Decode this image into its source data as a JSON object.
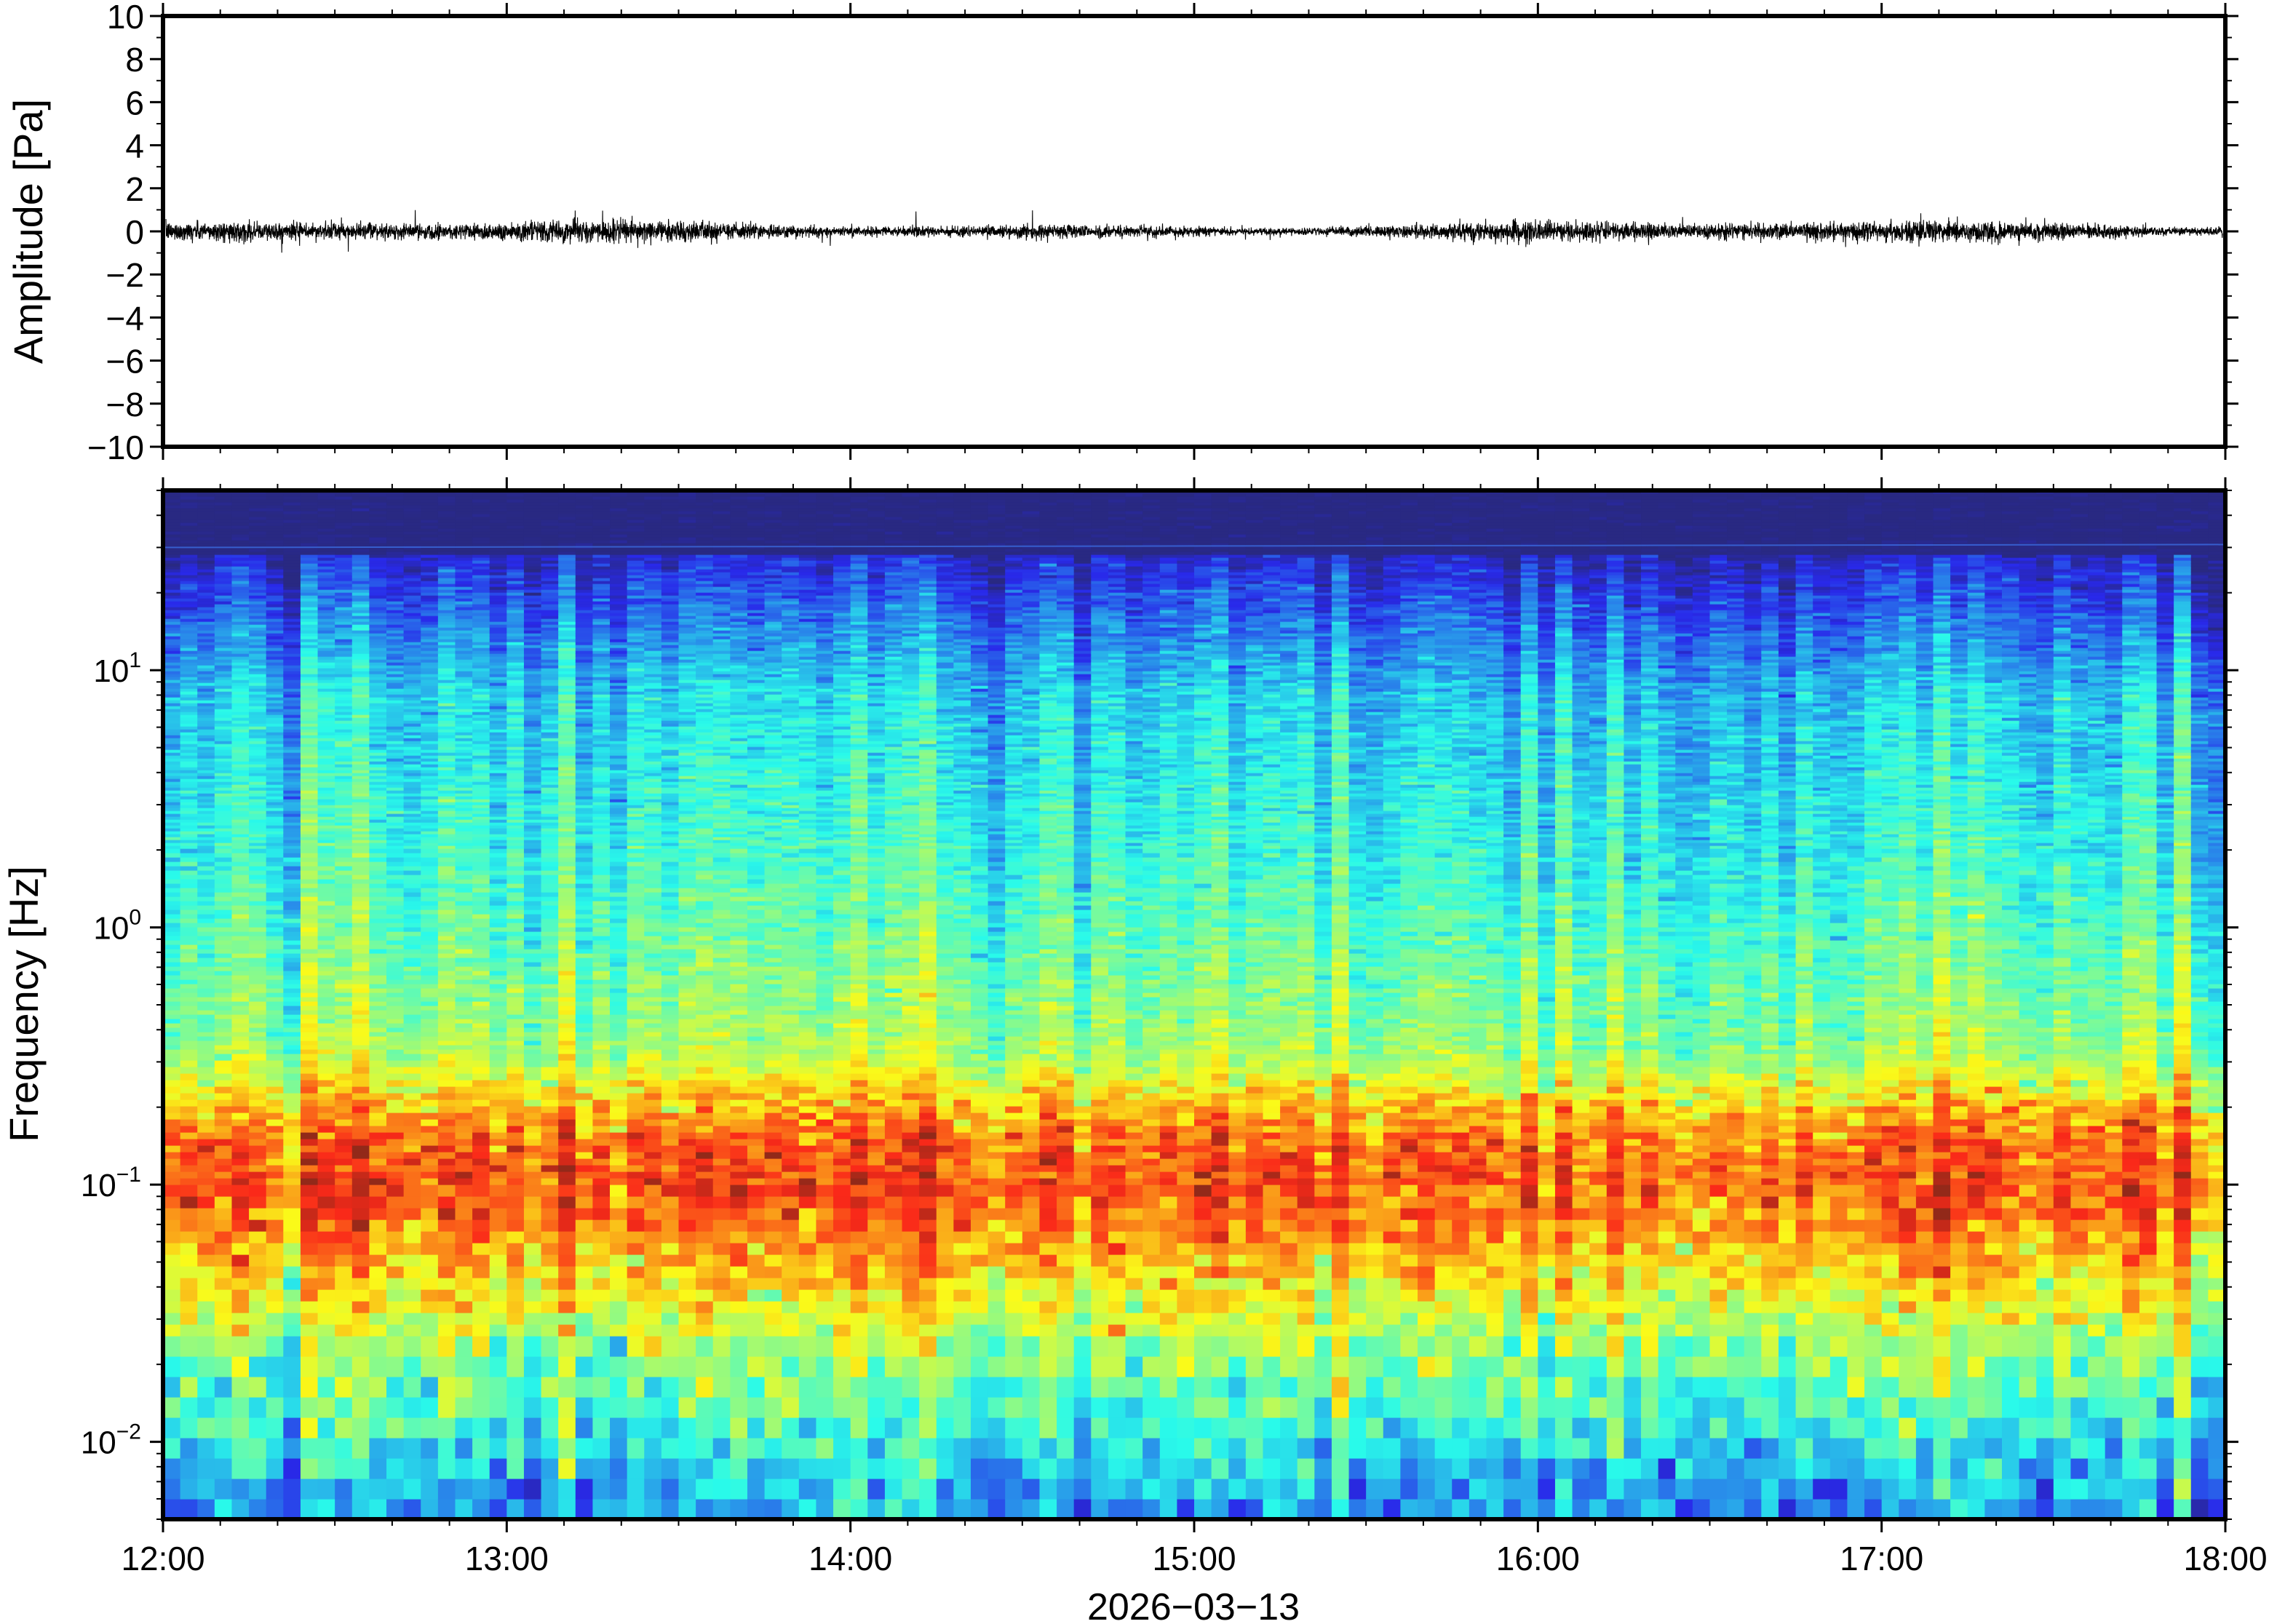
{
  "chart_data": [
    {
      "type": "line",
      "ylabel": "Amplitude [Pa]",
      "ylim": [
        -10,
        10
      ],
      "y_ticks": [
        "10",
        "8",
        "6",
        "4",
        "2",
        "0",
        "−2",
        "−4",
        "−6",
        "−8",
        "−10"
      ],
      "y_tick_values": [
        10,
        8,
        6,
        4,
        2,
        0,
        -2,
        -4,
        -6,
        -8,
        -10
      ],
      "xlim": [
        "12:00",
        "18:00"
      ],
      "series": [
        {
          "description_of_signal": "noise trace",
          "approx_peak_abs_amplitude": 1.2,
          "mean": 0
        }
      ]
    },
    {
      "type": "heatmap",
      "ylabel": "Frequency [Hz]",
      "y_scale": "log",
      "ylim": [
        0.005,
        50
      ],
      "y_ticks": [
        {
          "value": 10,
          "base": "10",
          "exp": "1"
        },
        {
          "value": 1,
          "base": "10",
          "exp": "0"
        },
        {
          "value": 0.1,
          "base": "10",
          "exp": "−1"
        },
        {
          "value": 0.01,
          "base": "10",
          "exp": "−2"
        }
      ],
      "xlabel": "2026−03−13",
      "x_ticks": [
        "12:00",
        "13:00",
        "14:00",
        "15:00",
        "16:00",
        "17:00",
        "18:00"
      ],
      "colormap": "jet",
      "colors": {
        "high": "#e8483a",
        "mid_high": "#f6a94a",
        "mid": "#d8f58a",
        "mid_low": "#72e3cd",
        "low": "#2e9bf0",
        "lowest": "#0c0c70"
      }
    }
  ]
}
